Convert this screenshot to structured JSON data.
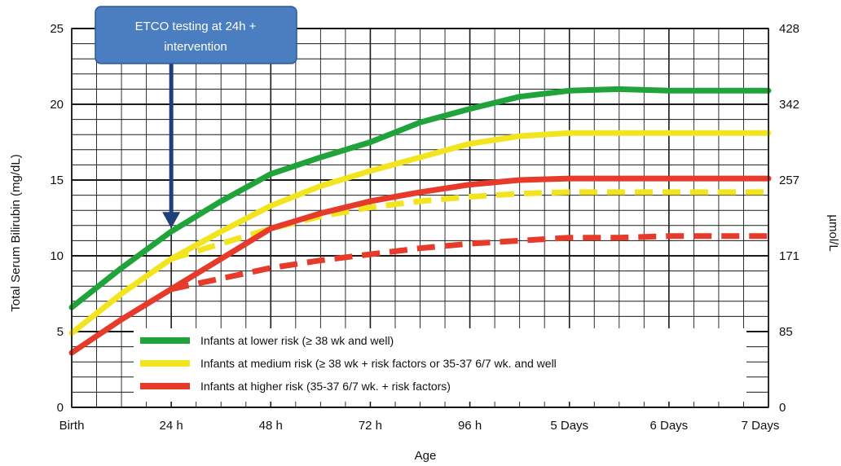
{
  "chart_data": {
    "type": "line",
    "xlabel": "Age",
    "ylabel": "Total Serum Bilirubin (mg/dL)",
    "ylabel_right": "µmol/L",
    "categories": [
      "Birth",
      "24 h",
      "48 h",
      "72 h",
      "96 h",
      "5 Days",
      "6 Days",
      "7 Days"
    ],
    "x_unit": "hours",
    "xlim": [
      0,
      168
    ],
    "ylim": [
      0,
      25
    ],
    "y_ticks": [
      0,
      5,
      10,
      15,
      20,
      25
    ],
    "y_right_ticks": [
      {
        "mgdl": 0,
        "label": "0"
      },
      {
        "mgdl": 5,
        "label": "85"
      },
      {
        "mgdl": 10,
        "label": "171"
      },
      {
        "mgdl": 15,
        "label": "257"
      },
      {
        "mgdl": 20,
        "label": "342"
      },
      {
        "mgdl": 25,
        "label": "428"
      }
    ],
    "grid": true,
    "series": [
      {
        "name": "Infants at lower risk (≥ 38 wk and well)",
        "color": "#1fa33a",
        "style": "solid",
        "x": [
          0,
          12,
          24,
          36,
          48,
          60,
          72,
          84,
          96,
          108,
          120,
          132,
          144,
          156,
          168
        ],
        "y": [
          6.6,
          9.2,
          11.6,
          13.6,
          15.4,
          16.5,
          17.5,
          18.8,
          19.7,
          20.5,
          20.9,
          21.0,
          20.9,
          20.9,
          20.9
        ]
      },
      {
        "name": "Infants at medium risk (≥ 38 wk + risk factors or 35-37 6/7 wk. and well",
        "color": "#f2e51f",
        "style": "solid",
        "x": [
          0,
          12,
          24,
          36,
          48,
          60,
          72,
          84,
          96,
          108,
          120,
          132,
          144,
          156,
          168
        ],
        "y": [
          4.9,
          7.5,
          9.8,
          11.6,
          13.3,
          14.6,
          15.6,
          16.5,
          17.4,
          17.9,
          18.1,
          18.1,
          18.1,
          18.1,
          18.1
        ]
      },
      {
        "name": "Infants at higher risk (35-37 6/7 wk. + risk factors)",
        "color": "#e63a2a",
        "style": "solid",
        "x": [
          0,
          12,
          24,
          36,
          48,
          60,
          72,
          84,
          96,
          108,
          120,
          132,
          144,
          156,
          168
        ],
        "y": [
          3.6,
          5.8,
          7.8,
          9.8,
          11.8,
          12.8,
          13.6,
          14.2,
          14.7,
          15.0,
          15.1,
          15.1,
          15.1,
          15.1,
          15.1
        ]
      },
      {
        "name": "",
        "color": "#f2e51f",
        "style": "dashed",
        "x": [
          24,
          36,
          48,
          60,
          72,
          84,
          96,
          108,
          120,
          132,
          144,
          156,
          168
        ],
        "y": [
          9.8,
          10.8,
          11.8,
          12.6,
          13.2,
          13.6,
          13.9,
          14.1,
          14.2,
          14.2,
          14.2,
          14.2,
          14.2
        ]
      },
      {
        "name": "",
        "color": "#e63a2a",
        "style": "dashed",
        "x": [
          24,
          36,
          48,
          60,
          72,
          84,
          96,
          108,
          120,
          132,
          144,
          156,
          168
        ],
        "y": [
          7.8,
          8.5,
          9.2,
          9.7,
          10.1,
          10.5,
          10.8,
          11.0,
          11.2,
          11.2,
          11.3,
          11.3,
          11.3
        ]
      }
    ],
    "legend": {
      "placement": "bottom-center",
      "entries": [
        {
          "label": "Infants at lower risk (≥ 38 wk and well)",
          "color": "#1fa33a"
        },
        {
          "label": "Infants at medium risk (≥ 38 wk + risk factors or 35-37 6/7 wk. and well",
          "color": "#f2e51f"
        },
        {
          "label": "Infants at higher risk (35-37 6/7 wk. + risk factors)",
          "color": "#e63a2a"
        }
      ]
    },
    "annotation": {
      "line1": "ETCO testing at 24h +",
      "line2": "intervention",
      "arrow_x": 24,
      "arrow_y": 11.6,
      "box_color": "#4a7ec0",
      "arrow_color": "#1f3f7a"
    }
  }
}
